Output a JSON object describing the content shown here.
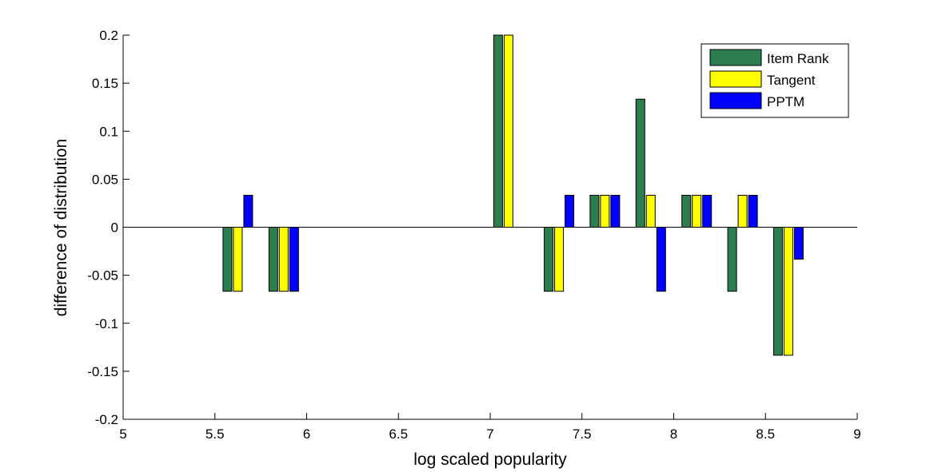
{
  "chart_data": {
    "type": "bar",
    "xlabel": "log scaled popularity",
    "ylabel": "difference of distribution",
    "xlim": [
      5,
      9
    ],
    "ylim": [
      -0.2,
      0.2
    ],
    "x_ticks": [
      "5",
      "5.5",
      "6",
      "6.5",
      "7",
      "7.5",
      "8",
      "8.5",
      "9"
    ],
    "y_ticks": [
      "-0.2",
      "-0.15",
      "-0.1",
      "-0.05",
      "0",
      "0.05",
      "0.1",
      "0.15",
      "0.2"
    ],
    "categories": [
      5.625,
      5.875,
      7.1,
      7.375,
      7.625,
      7.875,
      8.125,
      8.375,
      8.625
    ],
    "series": [
      {
        "name": "Item Rank",
        "color": "#2e7d4f",
        "values": [
          -0.0667,
          -0.0667,
          0.2,
          -0.0667,
          0.0333,
          0.1333,
          0.0333,
          -0.0667,
          -0.1333
        ]
      },
      {
        "name": "Tangent",
        "color": "#ffff00",
        "values": [
          -0.0667,
          -0.0667,
          0.2,
          -0.0667,
          0.0333,
          0.0333,
          0.0333,
          0.0333,
          -0.1333
        ]
      },
      {
        "name": "PPTM",
        "color": "#0000ff",
        "values": [
          0.0333,
          -0.0667,
          0.0,
          0.0333,
          0.0333,
          -0.0667,
          0.0333,
          0.0333,
          -0.0333
        ]
      }
    ],
    "legend_position": "top-right",
    "grid": false
  }
}
